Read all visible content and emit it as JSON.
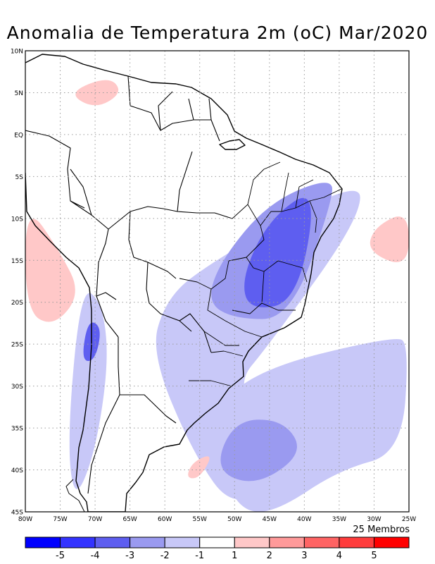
{
  "title": "Anomalia de Temperatura 2m (oC) Mar/2020",
  "members_note": "25 Membros",
  "map": {
    "lon_range": [
      -80,
      -25
    ],
    "lat_range": [
      -45,
      10
    ],
    "lat_labels": [
      "10N",
      "5N",
      "EQ",
      "5S",
      "10S",
      "15S",
      "20S",
      "25S",
      "30S",
      "35S",
      "40S",
      "45S"
    ],
    "lon_labels": [
      "80W",
      "75W",
      "70W",
      "65W",
      "60W",
      "55W",
      "50W",
      "45W",
      "40W",
      "35W",
      "30W",
      "25W"
    ],
    "gridlines": "dotted"
  },
  "colorbar": {
    "colors": [
      "#0000ff",
      "#3333ff",
      "#5e5ef0",
      "#9a9af0",
      "#c8c8f8",
      "#ffffff",
      "#ffc8c8",
      "#ff9a9a",
      "#ff6464",
      "#ff3c3c",
      "#ff0000"
    ],
    "labels": [
      "-5",
      "-4",
      "-3",
      "-2",
      "-1",
      "1",
      "2",
      "3",
      "4",
      "5"
    ]
  },
  "chart_data": {
    "type": "heatmap",
    "variable": "2m temperature anomaly",
    "units": "oC",
    "period": "Mar/2020",
    "levels": [
      -5,
      -4,
      -3,
      -2,
      -1,
      1,
      2,
      3,
      4,
      5
    ],
    "regions": [
      {
        "level": "-1 to -2",
        "color": "#c8c8f8",
        "lons": [
          -55,
          -32,
          -32,
          -45,
          -50,
          -44,
          -36,
          -35,
          -42,
          -50,
          -56,
          -62,
          -60
        ],
        "lats": [
          -16,
          -5,
          -10,
          -25,
          -30,
          -35,
          -30,
          -28,
          -40,
          -45,
          -38,
          -26,
          -20
        ]
      },
      {
        "level": "-1 to -2",
        "color": "#c8c8f8",
        "lons": [
          -47,
          -27,
          -25,
          -26,
          -35,
          -44,
          -49,
          -52,
          -54
        ],
        "lats": [
          -28,
          -24,
          -25,
          -38,
          -40,
          -45,
          -45,
          -40,
          -34
        ]
      },
      {
        "level": "-1 to -2",
        "color": "#c8c8f8",
        "lons": [
          -72,
          -69,
          -68,
          -70,
          -73,
          -74
        ],
        "lats": [
          -18,
          -20,
          -27,
          -38,
          -44,
          -36
        ]
      },
      {
        "level": "-2 to -3",
        "color": "#9a9af0",
        "lons": [
          -45,
          -36,
          -36,
          -42,
          -50,
          -54,
          -52
        ],
        "lats": [
          -8,
          -5,
          -8,
          -22,
          -22,
          -20,
          -15
        ]
      },
      {
        "level": "-2 to -3",
        "color": "#9a9af0",
        "lons": [
          -50,
          -43,
          -40,
          -47,
          -53
        ],
        "lats": [
          -34,
          -34,
          -38,
          -42,
          -40
        ]
      },
      {
        "level": "-3 to -4",
        "color": "#5e5ef0",
        "lons": [
          -45,
          -38,
          -41,
          -48,
          -49
        ],
        "lats": [
          -10,
          -6,
          -20,
          -21,
          -17
        ]
      },
      {
        "level": "-3 to -4",
        "color": "#5e5ef0",
        "lons": [
          -71,
          -69,
          -70,
          -72
        ],
        "lats": [
          -22,
          -23,
          -27,
          -27
        ]
      },
      {
        "level": "+1 to +2",
        "color": "#ffc8c8",
        "lons": [
          -80,
          -75,
          -72,
          -76,
          -80
        ],
        "lats": [
          -8,
          -14,
          -19,
          -23,
          -21
        ]
      },
      {
        "level": "+1 to +2",
        "color": "#ffc8c8",
        "lons": [
          -30,
          -25,
          -25,
          -31
        ],
        "lats": [
          -11,
          -9,
          -16,
          -14
        ]
      },
      {
        "level": "+1 to +2",
        "color": "#ffc8c8",
        "lons": [
          -74,
          -68,
          -66,
          -70
        ],
        "lats": [
          5,
          7,
          5,
          3
        ]
      },
      {
        "level": "+1 to +2",
        "color": "#ffc8c8",
        "lons": [
          -56,
          -53,
          -55,
          -57
        ],
        "lats": [
          -39,
          -38,
          -41,
          -41
        ]
      }
    ]
  }
}
